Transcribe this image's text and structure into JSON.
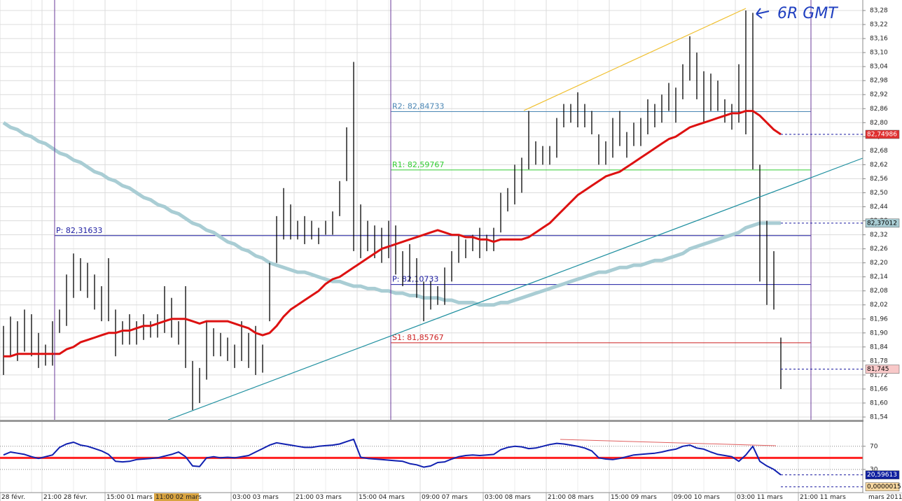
{
  "chart_data": [
    {
      "type": "hilo",
      "annotation": "6R GMT",
      "xlim": [
        0,
        246.4
      ],
      "xticks": [
        {
          "value": 0,
          "label": "28 févr."
        },
        {
          "value": 12,
          "label": "21:00 28 févr."
        },
        {
          "value": 30,
          "label": "15:00 01 mars"
        },
        {
          "value": 66,
          "label": "03:00 03 mars"
        },
        {
          "value": 84,
          "label": "21:00 03 mars"
        },
        {
          "value": 102,
          "label": "15:00 04 mars"
        },
        {
          "value": 120,
          "label": "09:00 07 mars"
        },
        {
          "value": 138,
          "label": "03:00 08 mars"
        },
        {
          "value": 156,
          "label": "21:00 08 mars"
        },
        {
          "value": 174,
          "label": "15:00 09 mars"
        },
        {
          "value": 192,
          "label": "09:00 10 mars"
        },
        {
          "value": 210,
          "label": "03:00 11 mars"
        },
        {
          "value": 228,
          "label": "21:00 11 mars"
        }
      ],
      "cursor": {
        "value": 44,
        "label": "11:00 02 mars"
      },
      "period_label": "mars 2011",
      "ylim": [
        81.528,
        83.325
      ],
      "yticks": [
        {
          "value": 81.54,
          "label": "81,54"
        },
        {
          "value": 81.6,
          "label": "81,60"
        },
        {
          "value": 81.66,
          "label": "81,66"
        },
        {
          "value": 81.72,
          "label": "81,72"
        },
        {
          "value": 81.78,
          "label": "81,78"
        },
        {
          "value": 81.84,
          "label": "81,84"
        },
        {
          "value": 81.9,
          "label": "81,90"
        },
        {
          "value": 81.96,
          "label": "81,96"
        },
        {
          "value": 82.02,
          "label": "82,02"
        },
        {
          "value": 82.08,
          "label": "82,08"
        },
        {
          "value": 82.14,
          "label": "82,14"
        },
        {
          "value": 82.2,
          "label": "82,20"
        },
        {
          "value": 82.26,
          "label": "82,26"
        },
        {
          "value": 82.32,
          "label": "82,32"
        },
        {
          "value": 82.38,
          "label": "82,38"
        },
        {
          "value": 82.44,
          "label": "82,44"
        },
        {
          "value": 82.5,
          "label": "82,50"
        },
        {
          "value": 82.56,
          "label": "82,56"
        },
        {
          "value": 82.62,
          "label": "82,62"
        },
        {
          "value": 82.68,
          "label": "82,68"
        },
        {
          "value": 82.74,
          "label": "82,74"
        },
        {
          "value": 82.8,
          "label": "82,80"
        },
        {
          "value": 82.86,
          "label": "82,86"
        },
        {
          "value": 82.92,
          "label": "82,92"
        },
        {
          "value": 82.98,
          "label": "82,98"
        },
        {
          "value": 83.04,
          "label": "83,04"
        },
        {
          "value": 83.1,
          "label": "83,10"
        },
        {
          "value": 83.16,
          "label": "83,16"
        },
        {
          "value": 83.22,
          "label": "83,22"
        },
        {
          "value": 83.28,
          "label": "83,28"
        }
      ],
      "grid": "solid",
      "bar_color": "#000000",
      "x": [
        1,
        3,
        5,
        7,
        9,
        11,
        13,
        15,
        17,
        19,
        21,
        23,
        25,
        27,
        29,
        31,
        33,
        35,
        37,
        39,
        41,
        43,
        45,
        47,
        49,
        51,
        53,
        55,
        57,
        59,
        61,
        63,
        65,
        67,
        69,
        71,
        73,
        75,
        77,
        79,
        81,
        83,
        85,
        87,
        89,
        91,
        93,
        95,
        97,
        99,
        101,
        103,
        105,
        107,
        109,
        111,
        113,
        115,
        117,
        119,
        121,
        123,
        125,
        127,
        129,
        131,
        133,
        135,
        137,
        139,
        141,
        143,
        145,
        147,
        149,
        151,
        153,
        155,
        157,
        159,
        161,
        163,
        165,
        167,
        169,
        171,
        173,
        175,
        177,
        179,
        181,
        183,
        185,
        187,
        189,
        191,
        193,
        195,
        197,
        199,
        201,
        203,
        205,
        207,
        209,
        211,
        213,
        215,
        217,
        219,
        221,
        223
      ],
      "high": [
        81.93,
        81.97,
        81.95,
        82.0,
        81.98,
        81.9,
        81.85,
        81.95,
        82.0,
        82.15,
        82.24,
        82.22,
        82.2,
        82.15,
        82.1,
        82.22,
        82.0,
        81.95,
        81.98,
        81.95,
        81.98,
        81.95,
        81.98,
        82.1,
        82.05,
        81.95,
        82.1,
        81.78,
        81.75,
        81.95,
        81.92,
        81.9,
        81.88,
        81.85,
        81.95,
        81.9,
        81.93,
        81.85,
        82.2,
        82.4,
        82.52,
        82.45,
        82.38,
        82.4,
        82.38,
        82.35,
        82.38,
        82.42,
        82.55,
        82.78,
        83.06,
        82.45,
        82.38,
        82.36,
        82.35,
        82.38,
        82.36,
        82.25,
        82.28,
        82.22,
        82.12,
        82.12,
        82.1,
        82.18,
        82.25,
        82.32,
        82.3,
        82.32,
        82.35,
        82.32,
        82.35,
        82.5,
        82.52,
        82.62,
        82.65,
        82.85,
        82.72,
        82.7,
        82.7,
        82.82,
        82.88,
        82.88,
        82.93,
        82.88,
        82.85,
        82.75,
        82.72,
        82.82,
        82.85,
        82.76,
        82.8,
        82.82,
        82.9,
        82.88,
        82.92,
        82.97,
        82.95,
        83.05,
        83.17,
        83.1,
        83.02,
        83.01,
        82.98,
        82.9,
        82.88,
        83.05,
        83.28,
        83.27,
        82.62,
        82.38,
        82.25,
        81.88
      ],
      "low": [
        81.72,
        81.8,
        81.78,
        81.82,
        81.8,
        81.75,
        81.76,
        81.76,
        81.9,
        81.93,
        82.05,
        82.08,
        82.05,
        82.0,
        81.95,
        81.95,
        81.8,
        81.85,
        81.85,
        81.85,
        81.87,
        81.88,
        81.88,
        81.9,
        81.88,
        81.85,
        81.75,
        81.57,
        81.6,
        81.7,
        81.8,
        81.8,
        81.78,
        81.75,
        81.78,
        81.75,
        81.72,
        81.73,
        81.95,
        82.2,
        82.3,
        82.3,
        82.3,
        82.28,
        82.3,
        82.28,
        82.32,
        82.32,
        82.4,
        82.55,
        82.25,
        82.22,
        82.25,
        82.22,
        82.2,
        82.22,
        82.15,
        82.1,
        82.12,
        82.05,
        81.95,
        82.0,
        82.02,
        82.02,
        82.12,
        82.2,
        82.22,
        82.25,
        82.22,
        82.25,
        82.25,
        82.33,
        82.42,
        82.45,
        82.5,
        82.6,
        82.62,
        82.62,
        82.62,
        82.65,
        82.78,
        82.8,
        82.78,
        82.78,
        82.75,
        82.62,
        82.62,
        82.65,
        82.7,
        82.65,
        82.7,
        82.7,
        82.75,
        82.78,
        82.8,
        82.85,
        82.8,
        82.9,
        82.98,
        82.9,
        82.8,
        82.85,
        82.85,
        82.8,
        82.77,
        82.8,
        82.75,
        82.6,
        82.12,
        82.02,
        82.0,
        81.66
      ],
      "lines": [
        {
          "color": "#a9cdd4",
          "values": [
            82.8,
            82.78,
            82.77,
            82.75,
            82.74,
            82.72,
            82.71,
            82.69,
            82.67,
            82.66,
            82.64,
            82.63,
            82.61,
            82.59,
            82.58,
            82.56,
            82.55,
            82.53,
            82.52,
            82.5,
            82.48,
            82.47,
            82.45,
            82.44,
            82.42,
            82.41,
            82.39,
            82.37,
            82.36,
            82.34,
            82.33,
            82.31,
            82.29,
            82.28,
            82.26,
            82.25,
            82.23,
            82.22,
            82.2,
            82.19,
            82.18,
            82.17,
            82.16,
            82.16,
            82.15,
            82.14,
            82.13,
            82.12,
            82.12,
            82.11,
            82.1,
            82.1,
            82.09,
            82.09,
            82.08,
            82.08,
            82.07,
            82.07,
            82.06,
            82.06,
            82.05,
            82.05,
            82.05,
            82.04,
            82.04,
            82.03,
            82.03,
            82.03,
            82.02,
            82.02,
            82.02,
            82.03,
            82.03,
            82.04,
            82.05,
            82.06,
            82.07,
            82.08,
            82.09,
            82.1,
            82.11,
            82.12,
            82.13,
            82.14,
            82.15,
            82.16,
            82.16,
            82.17,
            82.18,
            82.18,
            82.19,
            82.19,
            82.2,
            82.21,
            82.21,
            82.22,
            82.23,
            82.24,
            82.26,
            82.27,
            82.28,
            82.29,
            82.3,
            82.31,
            82.32,
            82.33,
            82.35,
            82.36,
            82.37,
            82.37,
            82.37,
            82.37
          ]
        },
        {
          "color": "#dd1111",
          "values": [
            81.8,
            81.8,
            81.81,
            81.81,
            81.81,
            81.81,
            81.81,
            81.81,
            81.81,
            81.83,
            81.84,
            81.86,
            81.87,
            81.88,
            81.89,
            81.9,
            81.9,
            81.91,
            81.91,
            81.92,
            81.93,
            81.93,
            81.94,
            81.95,
            81.96,
            81.96,
            81.96,
            81.95,
            81.94,
            81.95,
            81.95,
            81.95,
            81.95,
            81.94,
            81.93,
            81.92,
            81.9,
            81.89,
            81.9,
            81.93,
            81.97,
            82.0,
            82.02,
            82.04,
            82.06,
            82.08,
            82.11,
            82.13,
            82.14,
            82.16,
            82.18,
            82.2,
            82.22,
            82.24,
            82.26,
            82.27,
            82.28,
            82.29,
            82.3,
            82.31,
            82.32,
            82.33,
            82.34,
            82.33,
            82.32,
            82.32,
            82.31,
            82.31,
            82.3,
            82.3,
            82.29,
            82.3,
            82.3,
            82.3,
            82.3,
            82.31,
            82.33,
            82.35,
            82.37,
            82.4,
            82.43,
            82.46,
            82.49,
            82.51,
            82.53,
            82.55,
            82.57,
            82.58,
            82.59,
            82.61,
            82.63,
            82.65,
            82.67,
            82.69,
            82.71,
            82.73,
            82.74,
            82.76,
            82.78,
            82.79,
            82.8,
            82.81,
            82.82,
            82.83,
            82.84,
            82.84,
            82.85,
            82.85,
            82.83,
            82.8,
            82.77,
            82.75
          ]
        }
      ],
      "levels": [
        {
          "label": "P: 82,31633",
          "value": 82.31633,
          "start": 15.6,
          "end": 231.6,
          "color": "#1a1aa0"
        },
        {
          "label": "R2: 82,84733",
          "value": 82.84733,
          "start": 111.6,
          "end": 231.6,
          "color": "#4a86b4"
        },
        {
          "label": "R1: 82,59767",
          "value": 82.59767,
          "start": 111.6,
          "end": 231.6,
          "color": "#33cc33"
        },
        {
          "label": "P: 82,10733",
          "value": 82.10733,
          "start": 111.6,
          "end": 231.6,
          "color": "#1a1aa0"
        },
        {
          "label": "S1: 81,85767",
          "value": 81.85767,
          "start": 111.6,
          "end": 231.6,
          "color": "#cc2222"
        }
      ],
      "price_labels": [
        {
          "value": 82.74986,
          "label": "82,74986",
          "color": "#e03030",
          "text_color": "#ffffff"
        },
        {
          "value": 82.37012,
          "label": "82,37012",
          "color": "#a9cdd4",
          "text_color": "#000000"
        },
        {
          "value": 81.745,
          "label": "81,745",
          "color": "#f8c8c8",
          "text_color": "#000000"
        }
      ]
    },
    {
      "type": "line",
      "color": "#1020b0",
      "ylim": [
        -10,
        112
      ],
      "yticks": [
        30,
        70
      ],
      "grid": "dotted",
      "values": [
        55,
        60,
        58,
        56,
        52,
        49,
        52,
        55,
        68,
        74,
        77,
        72,
        70,
        66,
        62,
        56,
        44,
        43,
        44,
        47,
        48,
        49,
        50,
        53,
        56,
        60,
        52,
        36,
        35,
        50,
        52,
        50,
        51,
        50,
        52,
        54,
        60,
        66,
        72,
        76,
        74,
        72,
        70,
        68,
        68,
        70,
        71,
        72,
        74,
        78,
        82,
        51,
        49,
        48,
        47,
        46,
        45,
        44,
        40,
        38,
        34,
        36,
        42,
        43,
        48,
        52,
        54,
        55,
        54,
        55,
        56,
        64,
        68,
        70,
        69,
        66,
        67,
        70,
        73,
        75,
        74,
        72,
        70,
        67,
        62,
        50,
        48,
        47,
        49,
        52,
        55,
        56,
        57,
        58,
        60,
        63,
        65,
        70,
        72,
        67,
        65,
        60,
        56,
        54,
        52,
        44,
        55,
        70,
        44,
        36,
        30,
        20.6
      ],
      "levels": [
        {
          "value": 50,
          "color": "#ff2020"
        }
      ],
      "price_labels": [
        {
          "value": 20.59613,
          "label": "20,59613",
          "color": "#1020a0",
          "text_color": "#ffffff"
        },
        {
          "value": 1.5e-06,
          "label": "0,0000015",
          "color": "#f8d8a0",
          "text_color": "#000000"
        }
      ]
    }
  ]
}
